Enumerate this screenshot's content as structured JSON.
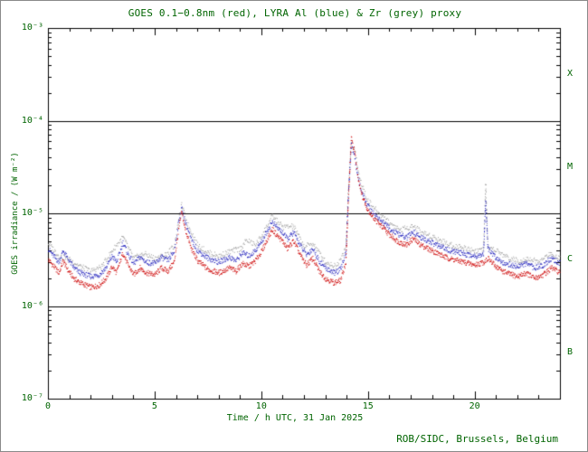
{
  "figure": {
    "credit": "ROB/SIDC, Brussels, Belgium"
  },
  "chart_data": {
    "type": "scatter",
    "title": "GOES 0.1−0.8nm (red), LYRA Al (blue) & Zr (grey) proxy",
    "xlabel": "Time / h UTC, 31 Jan 2025",
    "ylabel": "GOES irradiance / (W m⁻²)",
    "xlim": [
      0,
      24
    ],
    "ylim": [
      1e-07,
      0.001
    ],
    "y_scale": "log",
    "grid": false,
    "legend_position": "none (colors named in title)",
    "x_major_ticks": [
      0,
      5,
      10,
      15,
      20
    ],
    "x_minor_step": 1,
    "y_tick_values": [
      0.001,
      0.0001,
      1e-05,
      1e-06,
      1e-07
    ],
    "y_tick_labels": [
      "10⁻³",
      "10⁻⁴",
      "10⁻⁵",
      "10⁻⁶",
      "10⁻⁷"
    ],
    "hlines": [
      0.0001,
      1e-05,
      1e-06
    ],
    "flare_classes": [
      {
        "label": "X",
        "between": [
          0.001,
          0.0001
        ]
      },
      {
        "label": "M",
        "between": [
          0.0001,
          1e-05
        ]
      },
      {
        "label": "C",
        "between": [
          1e-05,
          1e-06
        ]
      },
      {
        "label": "B",
        "between": [
          1e-06,
          1e-07
        ]
      }
    ],
    "colors": {
      "text": "#006400",
      "frame": "#000000"
    },
    "series": [
      {
        "name": "GOES 0.1-0.8nm",
        "color": "#cc0000",
        "seed": 1,
        "density": 60,
        "points": [
          [
            0.0,
            3.2e-06
          ],
          [
            0.2,
            2.8e-06
          ],
          [
            0.5,
            2.3e-06
          ],
          [
            0.7,
            3.1e-06
          ],
          [
            0.9,
            2.5e-06
          ],
          [
            1.2,
            2e-06
          ],
          [
            1.5,
            1.8e-06
          ],
          [
            2.0,
            1.6e-06
          ],
          [
            2.4,
            1.7e-06
          ],
          [
            2.7,
            2e-06
          ],
          [
            3.0,
            2.7e-06
          ],
          [
            3.2,
            2.3e-06
          ],
          [
            3.5,
            3.8e-06
          ],
          [
            3.7,
            2.9e-06
          ],
          [
            4.0,
            2.2e-06
          ],
          [
            4.3,
            2.6e-06
          ],
          [
            4.6,
            2.3e-06
          ],
          [
            5.0,
            2.2e-06
          ],
          [
            5.3,
            2.6e-06
          ],
          [
            5.6,
            2.4e-06
          ],
          [
            5.9,
            3e-06
          ],
          [
            6.1,
            6.5e-06
          ],
          [
            6.25,
            1.05e-05
          ],
          [
            6.4,
            7e-06
          ],
          [
            6.7,
            4.2e-06
          ],
          [
            7.0,
            3.1e-06
          ],
          [
            7.5,
            2.5e-06
          ],
          [
            8.0,
            2.3e-06
          ],
          [
            8.5,
            2.6e-06
          ],
          [
            8.8,
            2.4e-06
          ],
          [
            9.1,
            2.9e-06
          ],
          [
            9.4,
            2.7e-06
          ],
          [
            9.7,
            3.1e-06
          ],
          [
            10.0,
            3.9e-06
          ],
          [
            10.3,
            5.5e-06
          ],
          [
            10.5,
            6.8e-06
          ],
          [
            10.7,
            5.9e-06
          ],
          [
            11.0,
            5e-06
          ],
          [
            11.2,
            4.2e-06
          ],
          [
            11.5,
            5.1e-06
          ],
          [
            11.8,
            3.6e-06
          ],
          [
            12.1,
            2.8e-06
          ],
          [
            12.4,
            3.3e-06
          ],
          [
            12.7,
            2.4e-06
          ],
          [
            13.0,
            2e-06
          ],
          [
            13.4,
            1.8e-06
          ],
          [
            13.7,
            1.9e-06
          ],
          [
            13.95,
            3e-06
          ],
          [
            14.05,
            1.2e-05
          ],
          [
            14.2,
            6.5e-05
          ],
          [
            14.35,
            4.8e-05
          ],
          [
            14.5,
            2.6e-05
          ],
          [
            14.7,
            1.6e-05
          ],
          [
            14.9,
            1.2e-05
          ],
          [
            15.1,
            1e-05
          ],
          [
            15.4,
            8.2e-06
          ],
          [
            15.7,
            7e-06
          ],
          [
            16.0,
            5.9e-06
          ],
          [
            16.4,
            5e-06
          ],
          [
            16.8,
            4.6e-06
          ],
          [
            17.1,
            5.4e-06
          ],
          [
            17.4,
            4.7e-06
          ],
          [
            17.8,
            4.2e-06
          ],
          [
            18.2,
            3.8e-06
          ],
          [
            18.6,
            3.4e-06
          ],
          [
            19.0,
            3.2e-06
          ],
          [
            19.5,
            3e-06
          ],
          [
            20.0,
            2.8e-06
          ],
          [
            20.4,
            3e-06
          ],
          [
            20.6,
            3.3e-06
          ],
          [
            20.9,
            2.8e-06
          ],
          [
            21.3,
            2.4e-06
          ],
          [
            21.7,
            2.2e-06
          ],
          [
            22.0,
            2.1e-06
          ],
          [
            22.4,
            2.3e-06
          ],
          [
            22.8,
            2e-06
          ],
          [
            23.2,
            2.2e-06
          ],
          [
            23.6,
            2.6e-06
          ],
          [
            24.0,
            2.3e-06
          ]
        ]
      },
      {
        "name": "LYRA Al proxy",
        "color": "#2222bb",
        "seed": 2,
        "density": 55,
        "points": [
          [
            0.0,
            4.2e-06
          ],
          [
            0.2,
            3.6e-06
          ],
          [
            0.5,
            3e-06
          ],
          [
            0.7,
            4e-06
          ],
          [
            0.9,
            3.3e-06
          ],
          [
            1.2,
            2.6e-06
          ],
          [
            1.5,
            2.3e-06
          ],
          [
            2.0,
            2.1e-06
          ],
          [
            2.4,
            2.2e-06
          ],
          [
            2.7,
            2.6e-06
          ],
          [
            3.0,
            3.5e-06
          ],
          [
            3.2,
            3e-06
          ],
          [
            3.5,
            4.9e-06
          ],
          [
            3.7,
            3.8e-06
          ],
          [
            4.0,
            2.9e-06
          ],
          [
            4.3,
            3.4e-06
          ],
          [
            4.6,
            3e-06
          ],
          [
            5.0,
            2.9e-06
          ],
          [
            5.3,
            3.4e-06
          ],
          [
            5.6,
            3.1e-06
          ],
          [
            5.9,
            3.9e-06
          ],
          [
            6.1,
            8e-06
          ],
          [
            6.25,
            1.15e-05
          ],
          [
            6.4,
            8.5e-06
          ],
          [
            6.7,
            5.2e-06
          ],
          [
            7.0,
            4e-06
          ],
          [
            7.5,
            3.3e-06
          ],
          [
            8.0,
            3e-06
          ],
          [
            8.5,
            3.4e-06
          ],
          [
            8.8,
            3.1e-06
          ],
          [
            9.1,
            3.8e-06
          ],
          [
            9.4,
            3.5e-06
          ],
          [
            9.7,
            4e-06
          ],
          [
            10.0,
            5e-06
          ],
          [
            10.3,
            6.8e-06
          ],
          [
            10.5,
            8.2e-06
          ],
          [
            10.7,
            7.2e-06
          ],
          [
            11.0,
            6.2e-06
          ],
          [
            11.2,
            5.3e-06
          ],
          [
            11.5,
            6.3e-06
          ],
          [
            11.8,
            4.6e-06
          ],
          [
            12.1,
            3.6e-06
          ],
          [
            12.4,
            4.2e-06
          ],
          [
            12.7,
            3.1e-06
          ],
          [
            13.0,
            2.6e-06
          ],
          [
            13.4,
            2.3e-06
          ],
          [
            13.7,
            2.5e-06
          ],
          [
            13.95,
            3.8e-06
          ],
          [
            14.05,
            1.4e-05
          ],
          [
            14.2,
            5.6e-05
          ],
          [
            14.35,
            4.3e-05
          ],
          [
            14.5,
            2.5e-05
          ],
          [
            14.7,
            1.7e-05
          ],
          [
            14.9,
            1.3e-05
          ],
          [
            15.1,
            1.1e-05
          ],
          [
            15.4,
            9.3e-06
          ],
          [
            15.7,
            8e-06
          ],
          [
            16.0,
            6.9e-06
          ],
          [
            16.4,
            6e-06
          ],
          [
            16.8,
            5.5e-06
          ],
          [
            17.1,
            6.4e-06
          ],
          [
            17.4,
            5.6e-06
          ],
          [
            17.8,
            5.1e-06
          ],
          [
            18.2,
            4.6e-06
          ],
          [
            18.6,
            4.2e-06
          ],
          [
            19.0,
            3.9e-06
          ],
          [
            19.5,
            3.7e-06
          ],
          [
            20.0,
            3.5e-06
          ],
          [
            20.4,
            3.7e-06
          ],
          [
            20.5,
            1.4e-05
          ],
          [
            20.6,
            4.2e-06
          ],
          [
            20.9,
            3.5e-06
          ],
          [
            21.3,
            3e-06
          ],
          [
            21.7,
            2.8e-06
          ],
          [
            22.0,
            2.7e-06
          ],
          [
            22.4,
            2.9e-06
          ],
          [
            22.8,
            2.6e-06
          ],
          [
            23.2,
            2.8e-06
          ],
          [
            23.6,
            3.3e-06
          ],
          [
            24.0,
            2.9e-06
          ]
        ]
      },
      {
        "name": "LYRA Zr proxy",
        "color": "#9a9a9a",
        "seed": 3,
        "density": 35,
        "points": [
          [
            0.0,
            4.8e-06
          ],
          [
            0.5,
            3.5e-06
          ],
          [
            1.0,
            3.2e-06
          ],
          [
            1.5,
            2.7e-06
          ],
          [
            2.0,
            2.4e-06
          ],
          [
            2.5,
            2.7e-06
          ],
          [
            3.0,
            4e-06
          ],
          [
            3.5,
            5.6e-06
          ],
          [
            4.0,
            3.3e-06
          ],
          [
            4.5,
            3.7e-06
          ],
          [
            5.0,
            3.3e-06
          ],
          [
            5.5,
            3.6e-06
          ],
          [
            5.9,
            4.5e-06
          ],
          [
            6.25,
            1.25e-05
          ],
          [
            6.5,
            8e-06
          ],
          [
            7.0,
            4.6e-06
          ],
          [
            7.5,
            3.8e-06
          ],
          [
            8.0,
            3.5e-06
          ],
          [
            8.5,
            3.9e-06
          ],
          [
            9.0,
            4.2e-06
          ],
          [
            9.3,
            5.2e-06
          ],
          [
            9.7,
            4.6e-06
          ],
          [
            10.0,
            5.8e-06
          ],
          [
            10.5,
            9.4e-06
          ],
          [
            11.0,
            7.2e-06
          ],
          [
            11.5,
            7.3e-06
          ],
          [
            12.0,
            4.4e-06
          ],
          [
            12.4,
            4.8e-06
          ],
          [
            13.0,
            3e-06
          ],
          [
            13.5,
            2.7e-06
          ],
          [
            13.95,
            4.4e-06
          ],
          [
            14.05,
            1.6e-05
          ],
          [
            14.2,
            5.9e-05
          ],
          [
            14.4,
            4.4e-05
          ],
          [
            14.6,
            2.4e-05
          ],
          [
            14.9,
            1.5e-05
          ],
          [
            15.2,
            1.2e-05
          ],
          [
            15.6,
            9.6e-06
          ],
          [
            16.0,
            8e-06
          ],
          [
            16.5,
            6.7e-06
          ],
          [
            17.1,
            7.4e-06
          ],
          [
            17.5,
            6.3e-06
          ],
          [
            18.0,
            5.7e-06
          ],
          [
            18.5,
            5e-06
          ],
          [
            19.0,
            4.5e-06
          ],
          [
            19.5,
            4.3e-06
          ],
          [
            20.0,
            4e-06
          ],
          [
            20.4,
            4.1e-06
          ],
          [
            20.5,
            2.1e-05
          ],
          [
            20.6,
            4.4e-06
          ],
          [
            21.0,
            4e-06
          ],
          [
            21.5,
            3.4e-06
          ],
          [
            22.0,
            3.1e-06
          ],
          [
            22.5,
            3.3e-06
          ],
          [
            23.0,
            3e-06
          ],
          [
            23.5,
            3.7e-06
          ],
          [
            24.0,
            3.3e-06
          ]
        ]
      }
    ]
  }
}
